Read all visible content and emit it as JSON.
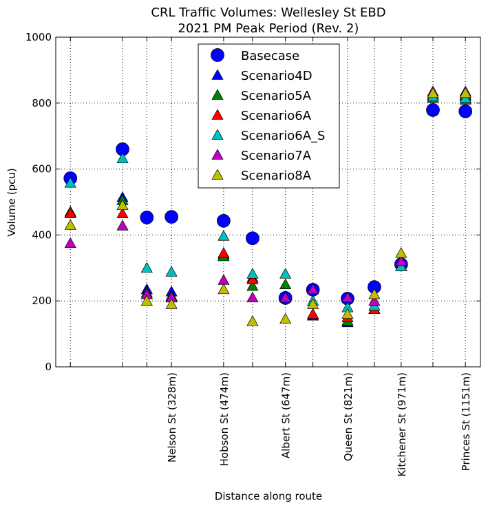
{
  "chart_data": {
    "type": "scatter",
    "title": "CRL Traffic Volumes: Wellesley St EBD",
    "subtitle": "2021 PM Peak Period (Rev. 2)",
    "x_label": "Distance along route",
    "y_label": "Volume (pcu)",
    "xlim": [
      4,
      1193
    ],
    "ylim": [
      0,
      1000
    ],
    "yticks": [
      0,
      200,
      400,
      600,
      800,
      1000
    ],
    "xticks": [
      {
        "value": 45,
        "label": null
      },
      {
        "value": 191,
        "label": null
      },
      {
        "value": 259,
        "label": null
      },
      {
        "value": 328,
        "label": "Nelson St (328m)"
      },
      {
        "value": 474,
        "label": "Hobson St (474m)"
      },
      {
        "value": 555,
        "label": null
      },
      {
        "value": 647,
        "label": "Albert St (647m)"
      },
      {
        "value": 724,
        "label": null
      },
      {
        "value": 821,
        "label": "Queen St (821m)"
      },
      {
        "value": 896,
        "label": null
      },
      {
        "value": 971,
        "label": "Kitchener St (971m)"
      },
      {
        "value": 1060,
        "label": null
      },
      {
        "value": 1151,
        "label": "Princes St (1151m)"
      }
    ],
    "grid": true,
    "legend": "upper center",
    "x": [
      45,
      191,
      259,
      328,
      474,
      555,
      647,
      724,
      821,
      896,
      971,
      1060,
      1151
    ],
    "series": [
      {
        "name": "Basecase",
        "color": "#0000ff",
        "marker": "circle",
        "values": [
          572,
          660,
          453,
          455,
          443,
          390,
          209,
          234,
          207,
          242,
          311,
          779,
          775
        ]
      },
      {
        "name": "Scenario4D",
        "color": "#0000ff",
        "marker": "triangle",
        "values": [
          470,
          514,
          235,
          228,
          340,
          270,
          210,
          155,
          135,
          175,
          305,
          820,
          820
        ]
      },
      {
        "name": "Scenario5A",
        "color": "#008000",
        "marker": "triangle",
        "values": [
          470,
          505,
          225,
          215,
          335,
          245,
          250,
          160,
          140,
          175,
          305,
          815,
          810
        ]
      },
      {
        "name": "Scenario6A",
        "color": "#ff0000",
        "marker": "triangle",
        "values": [
          465,
          465,
          220,
          210,
          345,
          265,
          210,
          160,
          150,
          175,
          305,
          825,
          825
        ]
      },
      {
        "name": "Scenario6A_S",
        "color": "#00bfbf",
        "marker": "triangle",
        "values": [
          558,
          632,
          300,
          288,
          397,
          282,
          282,
          200,
          180,
          185,
          305,
          820,
          815
        ]
      },
      {
        "name": "Scenario7A",
        "color": "#bf00bf",
        "marker": "triangle",
        "values": [
          375,
          428,
          220,
          210,
          263,
          210,
          210,
          235,
          210,
          200,
          320,
          835,
          835
        ]
      },
      {
        "name": "Scenario8A",
        "color": "#bfbf00",
        "marker": "triangle",
        "values": [
          430,
          490,
          200,
          190,
          235,
          138,
          145,
          190,
          160,
          220,
          345,
          830,
          830
        ]
      }
    ]
  }
}
